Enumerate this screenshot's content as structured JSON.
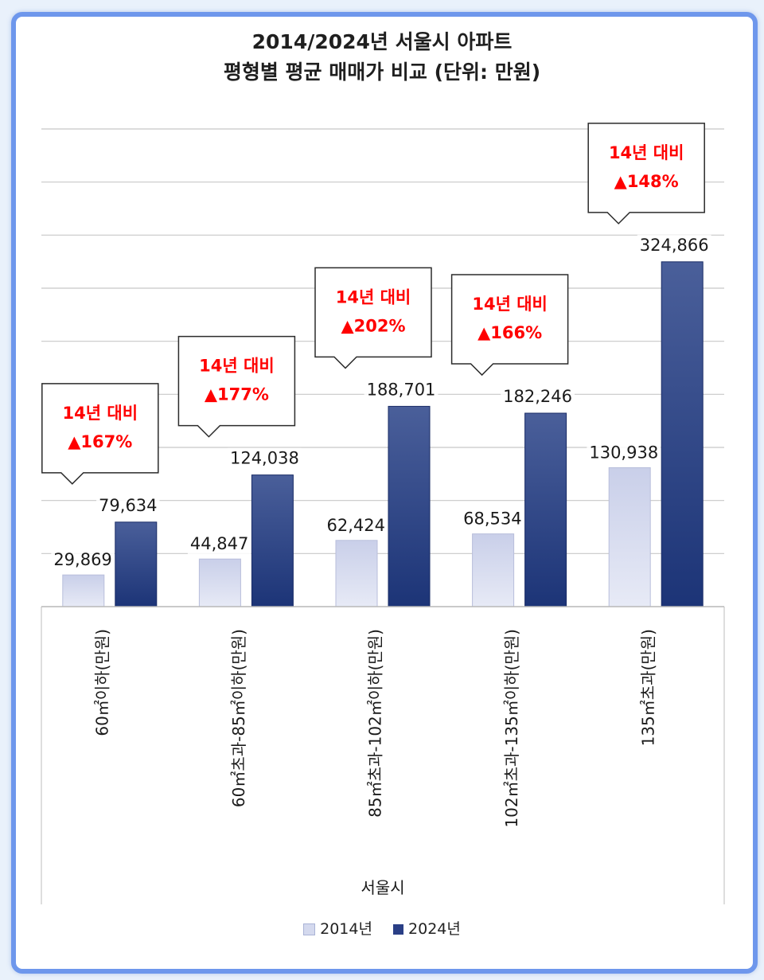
{
  "title_line1": "2014/2024년 서울시 아파트",
  "title_line2": "평형별 평균 매매가 비교 (단위: 만원)",
  "colors": {
    "s2014": "#d4d9ee",
    "s2024": "#2a3f86",
    "callout": "#ff0000",
    "grid": "#c8c8c8"
  },
  "chart_data": {
    "type": "bar",
    "title": "2014/2024년 서울시 아파트 평형별 평균 매매가 비교 (단위: 만원)",
    "xlabel": "서울시",
    "ylabel": "",
    "ylim": [
      0,
      450000
    ],
    "grid": true,
    "legend": "bottom",
    "categories": [
      "60㎡이하(만원)",
      "60㎡초과-85㎡이하(만원)",
      "85㎡초과-102㎡이하(만원)",
      "102㎡초과-135㎡이하(만원)",
      "135㎡초과(만원)"
    ],
    "series": [
      {
        "name": "2014년",
        "values": [
          29869,
          44847,
          62424,
          68534,
          130938
        ],
        "labels": [
          "29,869",
          "44,847",
          "62,424",
          "68,534",
          "130,938"
        ]
      },
      {
        "name": "2024년",
        "values": [
          79634,
          124038,
          188701,
          182246,
          324866
        ],
        "labels": [
          "79,634",
          "124,038",
          "188,701",
          "182,246",
          "324,866"
        ]
      }
    ],
    "annotations": [
      {
        "line1": "14년 대비",
        "line2": "▲167%"
      },
      {
        "line1": "14년 대비",
        "line2": "▲177%"
      },
      {
        "line1": "14년 대비",
        "line2": "▲202%"
      },
      {
        "line1": "14년 대비",
        "line2": "▲166%"
      },
      {
        "line1": "14년 대비",
        "line2": "▲148%"
      }
    ]
  }
}
